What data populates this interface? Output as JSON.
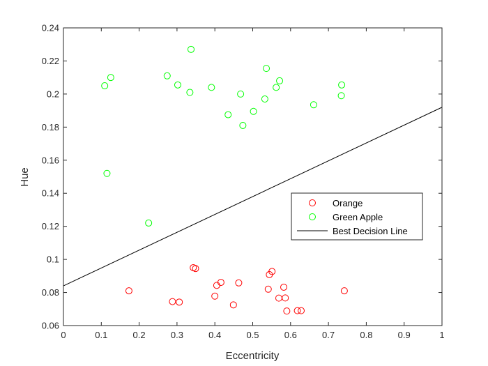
{
  "chart_data": {
    "type": "scatter",
    "title": "",
    "xlabel": "Eccentricity",
    "ylabel": "Hue",
    "xlim": [
      0,
      1
    ],
    "ylim": [
      0.06,
      0.24
    ],
    "xticks": [
      "0",
      "0.1",
      "0.2",
      "0.3",
      "0.4",
      "0.5",
      "0.6",
      "0.7",
      "0.8",
      "0.9",
      "1"
    ],
    "yticks": [
      "0.06",
      "0.08",
      "0.1",
      "0.12",
      "0.14",
      "0.16",
      "0.18",
      "0.2",
      "0.22",
      "0.24"
    ],
    "grid": false,
    "legend_position": "inside-right",
    "series": [
      {
        "name": "Orange",
        "color": "#ff0000",
        "marker": "circle-open",
        "points": [
          [
            0.173,
            0.081
          ],
          [
            0.288,
            0.0745
          ],
          [
            0.306,
            0.0742
          ],
          [
            0.343,
            0.095
          ],
          [
            0.349,
            0.0945
          ],
          [
            0.4,
            0.0778
          ],
          [
            0.405,
            0.0843
          ],
          [
            0.416,
            0.0861
          ],
          [
            0.449,
            0.0725
          ],
          [
            0.463,
            0.0858
          ],
          [
            0.541,
            0.082
          ],
          [
            0.544,
            0.0908
          ],
          [
            0.551,
            0.0927
          ],
          [
            0.569,
            0.0766
          ],
          [
            0.582,
            0.0832
          ],
          [
            0.586,
            0.0767
          ],
          [
            0.59,
            0.0688
          ],
          [
            0.618,
            0.069
          ],
          [
            0.628,
            0.069
          ],
          [
            0.742,
            0.081
          ]
        ]
      },
      {
        "name": "Green Apple",
        "color": "#00ff00",
        "marker": "circle-open",
        "points": [
          [
            0.109,
            0.205
          ],
          [
            0.115,
            0.152
          ],
          [
            0.125,
            0.21
          ],
          [
            0.225,
            0.122
          ],
          [
            0.274,
            0.211
          ],
          [
            0.302,
            0.2055
          ],
          [
            0.334,
            0.201
          ],
          [
            0.337,
            0.227
          ],
          [
            0.391,
            0.204
          ],
          [
            0.435,
            0.1875
          ],
          [
            0.468,
            0.2
          ],
          [
            0.474,
            0.181
          ],
          [
            0.502,
            0.1895
          ],
          [
            0.532,
            0.197
          ],
          [
            0.536,
            0.2155
          ],
          [
            0.562,
            0.204
          ],
          [
            0.571,
            0.208
          ],
          [
            0.661,
            0.1935
          ],
          [
            0.734,
            0.199
          ],
          [
            0.735,
            0.2055
          ]
        ]
      },
      {
        "name": "Best Decision Line",
        "color": "#000000",
        "marker": "line",
        "points": [
          [
            0,
            0.084
          ],
          [
            1,
            0.192
          ]
        ]
      }
    ]
  }
}
